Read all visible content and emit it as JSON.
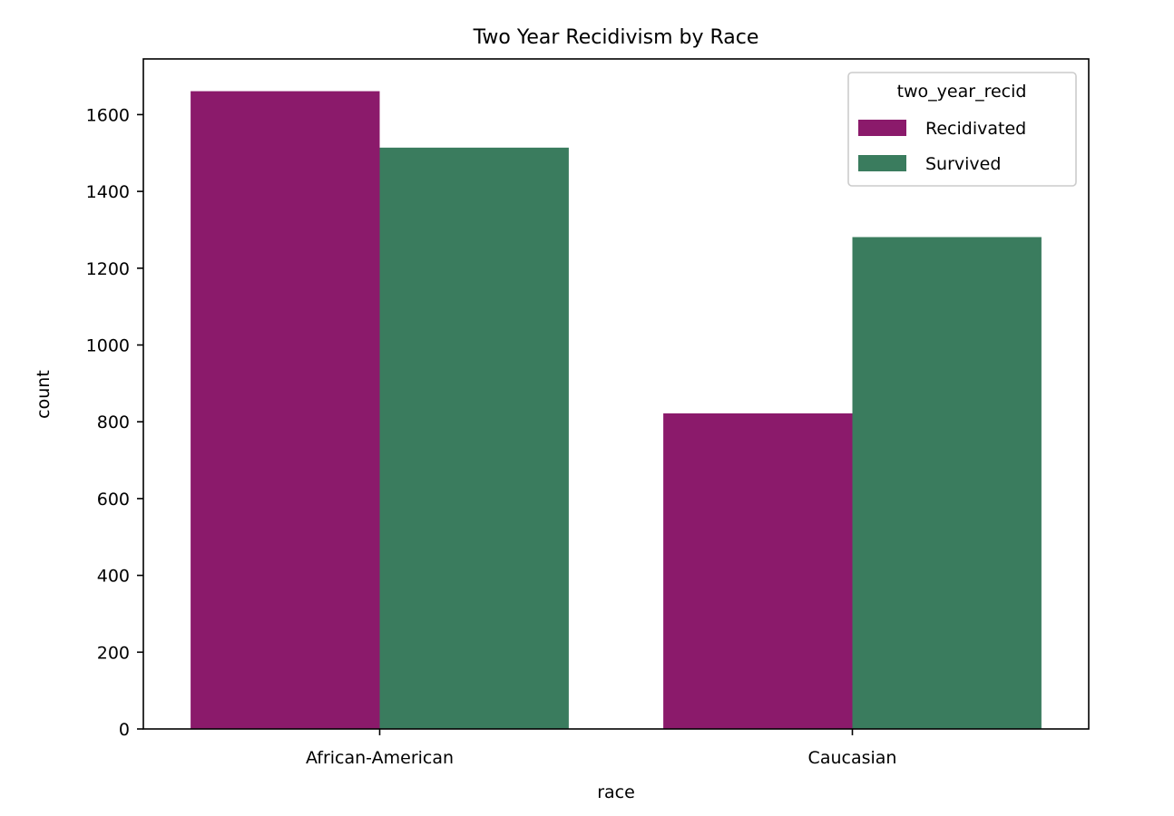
{
  "chart_data": {
    "type": "bar",
    "title": "Two Year Recidivism by Race",
    "xlabel": "race",
    "ylabel": "count",
    "categories": [
      "African-American",
      "Caucasian"
    ],
    "series": [
      {
        "name": "Recidivated",
        "values": [
          1661,
          822
        ],
        "color": "#8b1a6b"
      },
      {
        "name": "Survived",
        "values": [
          1514,
          1281
        ],
        "color": "#3a7c5e"
      }
    ],
    "ylim": [
      0,
      1745
    ],
    "yticks": [
      0,
      200,
      400,
      600,
      800,
      1000,
      1200,
      1400,
      1600
    ],
    "grid": false,
    "legend": {
      "title": "two_year_recid",
      "placement": "top-right"
    }
  }
}
